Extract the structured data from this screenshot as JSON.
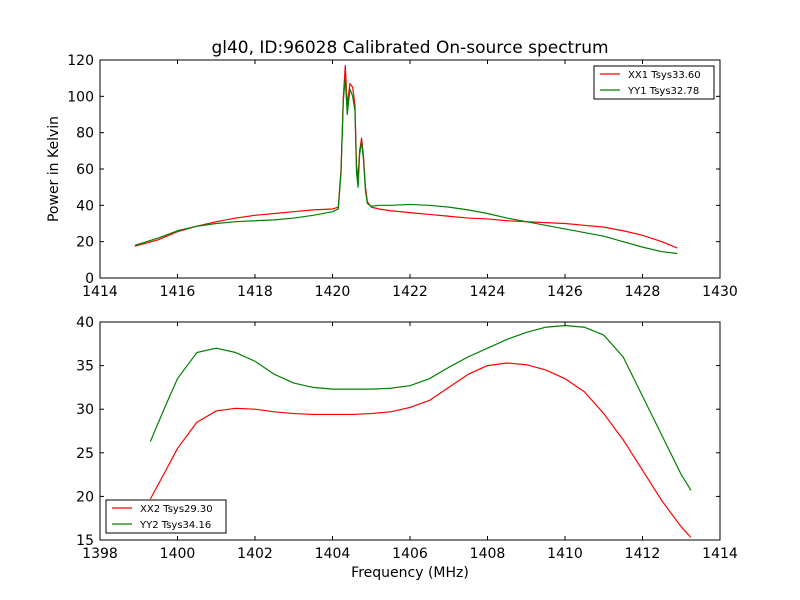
{
  "figure": {
    "title": "gl40, ID:96028 Calibrated On-source spectrum",
    "ylabel": "Power in Kelvin",
    "xlabel": "Frequency (MHz)"
  },
  "chart_data": [
    {
      "type": "line",
      "title": "gl40, ID:96028 Calibrated On-source spectrum",
      "xlabel": "",
      "ylabel": "Power in Kelvin",
      "xlim": [
        1414,
        1430
      ],
      "ylim": [
        0,
        120
      ],
      "xticks": [
        1414,
        1416,
        1418,
        1420,
        1422,
        1424,
        1426,
        1428,
        1430
      ],
      "yticks": [
        0,
        20,
        40,
        60,
        80,
        100,
        120
      ],
      "grid": false,
      "legend": "top-right",
      "series": [
        {
          "name": "XX1 Tsys33.60",
          "color": "#ff0000",
          "x": [
            1414.9,
            1415.5,
            1416,
            1416.5,
            1417,
            1417.5,
            1418,
            1418.5,
            1419,
            1419.5,
            1420,
            1420.15,
            1420.22,
            1420.28,
            1420.33,
            1420.38,
            1420.45,
            1420.52,
            1420.58,
            1420.62,
            1420.66,
            1420.7,
            1420.75,
            1420.8,
            1420.85,
            1420.9,
            1421.0,
            1421.2,
            1421.5,
            1422,
            1422.5,
            1423,
            1423.5,
            1424,
            1424.5,
            1425,
            1425.5,
            1426,
            1426.5,
            1427,
            1427.5,
            1428,
            1428.5,
            1428.9
          ],
          "y": [
            17.5,
            21,
            25.5,
            28.5,
            31,
            33,
            34.5,
            35.5,
            36.5,
            37.5,
            38,
            39,
            60,
            100,
            117,
            95,
            107,
            105,
            95,
            62,
            55,
            70,
            77,
            67,
            50,
            42,
            39,
            38,
            37,
            36,
            35,
            34,
            33,
            32.5,
            31.5,
            31,
            30.5,
            30,
            29,
            28,
            26,
            23.5,
            20,
            16.5
          ]
        },
        {
          "name": "YY1 Tsys32.78",
          "color": "#008000",
          "x": [
            1414.9,
            1415.5,
            1416,
            1416.5,
            1417,
            1417.5,
            1418,
            1418.5,
            1419,
            1419.5,
            1420,
            1420.15,
            1420.22,
            1420.28,
            1420.33,
            1420.38,
            1420.45,
            1420.52,
            1420.58,
            1420.62,
            1420.66,
            1420.7,
            1420.75,
            1420.8,
            1420.85,
            1420.9,
            1421.0,
            1421.2,
            1421.5,
            1422,
            1422.5,
            1423,
            1423.5,
            1424,
            1424.5,
            1425,
            1425.5,
            1426,
            1426.5,
            1427,
            1427.5,
            1428,
            1428.5,
            1428.9
          ],
          "y": [
            18,
            22,
            26,
            28.5,
            30,
            31,
            31.5,
            32,
            33,
            34.5,
            36.5,
            38,
            58,
            98,
            110,
            90,
            104,
            100,
            92,
            58,
            50,
            68,
            75,
            65,
            48,
            41,
            39.5,
            40,
            40,
            40.5,
            40,
            39,
            37.5,
            35.5,
            33,
            31,
            29,
            27,
            25,
            23,
            20,
            17,
            14.5,
            13.5
          ]
        }
      ]
    },
    {
      "type": "line",
      "title": "",
      "xlabel": "Frequency (MHz)",
      "ylabel": "",
      "xlim": [
        1398,
        1414
      ],
      "ylim": [
        15,
        40
      ],
      "xticks": [
        1398,
        1400,
        1402,
        1404,
        1406,
        1408,
        1410,
        1412,
        1414
      ],
      "yticks": [
        15,
        20,
        25,
        30,
        35,
        40
      ],
      "grid": false,
      "legend": "bottom-left",
      "series": [
        {
          "name": "XX2 Tsys29.30",
          "color": "#ff0000",
          "x": [
            1399.3,
            1399.7,
            1400,
            1400.5,
            1401,
            1401.5,
            1402,
            1402.5,
            1403,
            1403.5,
            1404,
            1404.5,
            1405,
            1405.5,
            1406,
            1406.5,
            1407,
            1407.5,
            1408,
            1408.5,
            1409,
            1409.5,
            1410,
            1410.5,
            1411,
            1411.5,
            1412,
            1412.5,
            1413,
            1413.25
          ],
          "y": [
            19.7,
            23,
            25.5,
            28.5,
            29.8,
            30.1,
            30,
            29.7,
            29.5,
            29.4,
            29.4,
            29.4,
            29.5,
            29.7,
            30.2,
            31,
            32.5,
            34,
            35,
            35.3,
            35.1,
            34.5,
            33.5,
            32,
            29.5,
            26.5,
            23,
            19.5,
            16.5,
            15.3
          ]
        },
        {
          "name": "YY2 Tsys34.16",
          "color": "#008000",
          "x": [
            1399.3,
            1399.7,
            1400,
            1400.5,
            1401,
            1401.5,
            1402,
            1402.5,
            1403,
            1403.5,
            1404,
            1404.5,
            1405,
            1405.5,
            1406,
            1406.5,
            1407,
            1407.5,
            1408,
            1408.5,
            1409,
            1409.5,
            1410,
            1410.5,
            1411,
            1411.5,
            1412,
            1412.5,
            1413,
            1413.25
          ],
          "y": [
            26.3,
            30.5,
            33.5,
            36.5,
            37,
            36.5,
            35.5,
            34,
            33,
            32.5,
            32.3,
            32.3,
            32.3,
            32.4,
            32.7,
            33.5,
            34.8,
            36,
            37,
            38,
            38.8,
            39.4,
            39.6,
            39.4,
            38.5,
            36,
            31.5,
            27,
            22.5,
            20.7
          ]
        }
      ]
    }
  ]
}
